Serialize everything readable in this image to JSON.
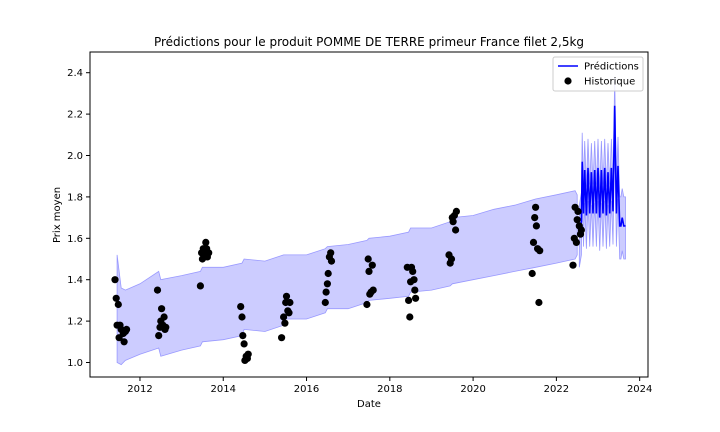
{
  "chart_data": {
    "type": "line",
    "title": "Prédictions pour le produit POMME DE TERRE primeur France filet 2,5kg",
    "xlabel": "Date",
    "ylabel": "Prix moyen",
    "xlim": [
      2010.8,
      2024.2
    ],
    "ylim": [
      0.93,
      2.5
    ],
    "x_ticks": [
      "2012",
      "2014",
      "2016",
      "2018",
      "2020",
      "2022",
      "2024"
    ],
    "y_ticks": [
      "1.0",
      "1.2",
      "1.4",
      "1.6",
      "1.8",
      "2.0",
      "2.2",
      "2.4"
    ],
    "grid": false,
    "legend_position": "top-right",
    "colors": {
      "prediction_line": "#0000ff",
      "prediction_band": "#ccccff",
      "band_edge": "#9999ff",
      "historique": "#000000"
    },
    "legend": [
      {
        "label": "Prédictions",
        "marker": "line"
      },
      {
        "label": "Historique",
        "marker": "circle"
      }
    ],
    "series": [
      {
        "name": "Prédictions",
        "kind": "band",
        "x": [
          2011.45,
          2011.55,
          2011.65,
          2012.0,
          2012.45,
          2012.5,
          2013.0,
          2013.45,
          2013.5,
          2014.0,
          2014.45,
          2014.5,
          2015.0,
          2015.45,
          2015.5,
          2016.0,
          2016.45,
          2016.5,
          2017.0,
          2017.45,
          2017.5,
          2018.0,
          2018.45,
          2018.5,
          2019.0,
          2019.45,
          2019.5,
          2020.0,
          2020.5,
          2021.0,
          2021.5,
          2022.0,
          2022.45,
          2022.5
        ],
        "upper": [
          1.52,
          1.36,
          1.35,
          1.38,
          1.44,
          1.4,
          1.42,
          1.44,
          1.46,
          1.46,
          1.48,
          1.5,
          1.49,
          1.52,
          1.52,
          1.52,
          1.55,
          1.56,
          1.57,
          1.59,
          1.6,
          1.61,
          1.63,
          1.65,
          1.65,
          1.68,
          1.7,
          1.71,
          1.74,
          1.76,
          1.79,
          1.81,
          1.83,
          1.81
        ],
        "lower": [
          1.0,
          0.99,
          1.01,
          1.04,
          1.07,
          1.03,
          1.06,
          1.08,
          1.1,
          1.11,
          1.13,
          1.16,
          1.15,
          1.18,
          1.21,
          1.21,
          1.24,
          1.26,
          1.26,
          1.29,
          1.3,
          1.31,
          1.32,
          1.34,
          1.35,
          1.37,
          1.38,
          1.4,
          1.42,
          1.44,
          1.46,
          1.48,
          1.5,
          1.52
        ]
      },
      {
        "name": "Prédictions",
        "kind": "line",
        "x": [
          2022.55,
          2022.6,
          2022.62,
          2022.65,
          2022.68,
          2022.72,
          2022.76,
          2022.8,
          2022.84,
          2022.88,
          2022.92,
          2022.96,
          2023.0,
          2023.04,
          2023.08,
          2023.12,
          2023.16,
          2023.2,
          2023.24,
          2023.28,
          2023.32,
          2023.36,
          2023.4,
          2023.44,
          2023.48,
          2023.52,
          2023.55,
          2023.58,
          2023.62,
          2023.66
        ],
        "y": [
          1.62,
          1.68,
          1.97,
          1.72,
          1.93,
          1.71,
          1.94,
          1.72,
          1.92,
          1.72,
          1.93,
          1.72,
          1.94,
          1.7,
          1.93,
          1.72,
          1.94,
          1.71,
          1.92,
          1.72,
          1.94,
          1.73,
          2.24,
          1.72,
          1.95,
          1.66,
          1.66,
          1.7,
          1.66,
          1.66
        ]
      },
      {
        "name": "Historique",
        "kind": "scatter",
        "x": [
          2011.4,
          2011.43,
          2011.45,
          2011.48,
          2011.5,
          2011.52,
          2011.55,
          2011.6,
          2011.62,
          2011.65,
          2011.68,
          2012.42,
          2012.45,
          2012.48,
          2012.5,
          2012.52,
          2012.55,
          2012.58,
          2012.6,
          2012.62,
          2013.45,
          2013.48,
          2013.5,
          2013.52,
          2013.55,
          2013.58,
          2013.6,
          2013.62,
          2013.65,
          2014.42,
          2014.45,
          2014.47,
          2014.5,
          2014.52,
          2014.55,
          2014.58,
          2014.6,
          2015.4,
          2015.45,
          2015.48,
          2015.5,
          2015.52,
          2015.55,
          2015.58,
          2015.6,
          2016.45,
          2016.47,
          2016.5,
          2016.52,
          2016.55,
          2016.58,
          2016.6,
          2017.45,
          2017.48,
          2017.5,
          2017.52,
          2017.55,
          2017.58,
          2017.6,
          2018.42,
          2018.45,
          2018.48,
          2018.5,
          2018.52,
          2018.55,
          2018.58,
          2018.6,
          2018.62,
          2019.42,
          2019.45,
          2019.48,
          2019.5,
          2019.52,
          2019.55,
          2019.58,
          2019.6,
          2021.42,
          2021.45,
          2021.48,
          2021.5,
          2021.52,
          2021.55,
          2021.58,
          2021.6,
          2022.4,
          2022.43,
          2022.45,
          2022.48,
          2022.5,
          2022.52,
          2022.55,
          2022.58,
          2022.6
        ],
        "y": [
          1.4,
          1.31,
          1.18,
          1.28,
          1.12,
          1.18,
          1.16,
          1.14,
          1.1,
          1.15,
          1.16,
          1.35,
          1.13,
          1.17,
          1.2,
          1.26,
          1.18,
          1.22,
          1.16,
          1.17,
          1.37,
          1.53,
          1.5,
          1.55,
          1.53,
          1.58,
          1.55,
          1.51,
          1.53,
          1.27,
          1.22,
          1.13,
          1.09,
          1.01,
          1.03,
          1.02,
          1.04,
          1.12,
          1.22,
          1.19,
          1.29,
          1.32,
          1.25,
          1.24,
          1.29,
          1.29,
          1.34,
          1.38,
          1.43,
          1.51,
          1.53,
          1.49,
          1.28,
          1.5,
          1.44,
          1.33,
          1.34,
          1.47,
          1.35,
          1.46,
          1.3,
          1.22,
          1.39,
          1.46,
          1.44,
          1.4,
          1.35,
          1.31,
          1.52,
          1.48,
          1.5,
          1.7,
          1.68,
          1.71,
          1.64,
          1.73,
          1.43,
          1.58,
          1.7,
          1.75,
          1.66,
          1.55,
          1.29,
          1.54,
          1.47,
          1.6,
          1.75,
          1.58,
          1.69,
          1.73,
          1.66,
          1.62,
          1.64
        ]
      }
    ]
  }
}
